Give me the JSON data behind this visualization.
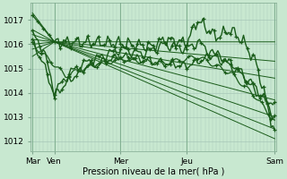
{
  "xlabel": "Pression niveau de la mer( hPa )",
  "bg_color": "#c8e8d0",
  "plot_bg_color": "#c8e8d0",
  "line_color": "#1a5c1a",
  "grid_color": "#a8c8b8",
  "xtick_labels": [
    "Mar",
    "Ven",
    "Mer",
    "Jeu",
    "Sam"
  ],
  "xtick_positions": [
    0,
    12,
    48,
    84,
    132
  ],
  "ytick_labels": [
    "1012",
    "1013",
    "1014",
    "1015",
    "1016",
    "1017"
  ],
  "ytick_values": [
    1012,
    1013,
    1014,
    1015,
    1016,
    1017
  ],
  "ylim": [
    1011.6,
    1017.7
  ],
  "xlim": [
    -1,
    133
  ],
  "N": 133,
  "fan_origin_x": 12,
  "fan_origin_y": 1016.1,
  "fan_end_x": 132,
  "straight_line_starts": [
    1017.3,
    1016.6,
    1016.4,
    1016.2,
    1016.0,
    1015.8,
    1015.5
  ],
  "straight_line_ends": [
    1016.1,
    1015.3,
    1014.6,
    1013.7,
    1013.0,
    1012.5,
    1012.1
  ]
}
